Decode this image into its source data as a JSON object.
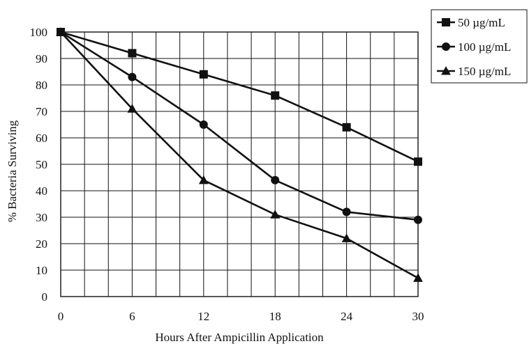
{
  "chart_data": {
    "type": "line",
    "title": "",
    "xlabel": "Hours After Ampicillin Application",
    "ylabel": "% Bacteria Surviving",
    "x": [
      0,
      6,
      12,
      18,
      24,
      30
    ],
    "xlim": [
      0,
      30
    ],
    "ylim": [
      0,
      100
    ],
    "x_ticks": [
      "0",
      "6",
      "12",
      "18",
      "24",
      "30"
    ],
    "y_ticks": [
      "0",
      "10",
      "20",
      "30",
      "40",
      "50",
      "60",
      "70",
      "80",
      "90",
      "100"
    ],
    "grid": true,
    "legend_position": "top-right",
    "series": [
      {
        "name": "50 µg/mL",
        "marker": "square",
        "values": [
          100,
          92,
          84,
          76,
          64,
          51
        ]
      },
      {
        "name": "100 µg/mL",
        "marker": "circle",
        "values": [
          100,
          83,
          65,
          44,
          32,
          29
        ]
      },
      {
        "name": "150 µg/mL",
        "marker": "triangle",
        "values": [
          100,
          71,
          44,
          31,
          22,
          7
        ]
      }
    ],
    "colors": {
      "line": "#111111",
      "grid": "#111111",
      "background": "#ffffff"
    }
  }
}
